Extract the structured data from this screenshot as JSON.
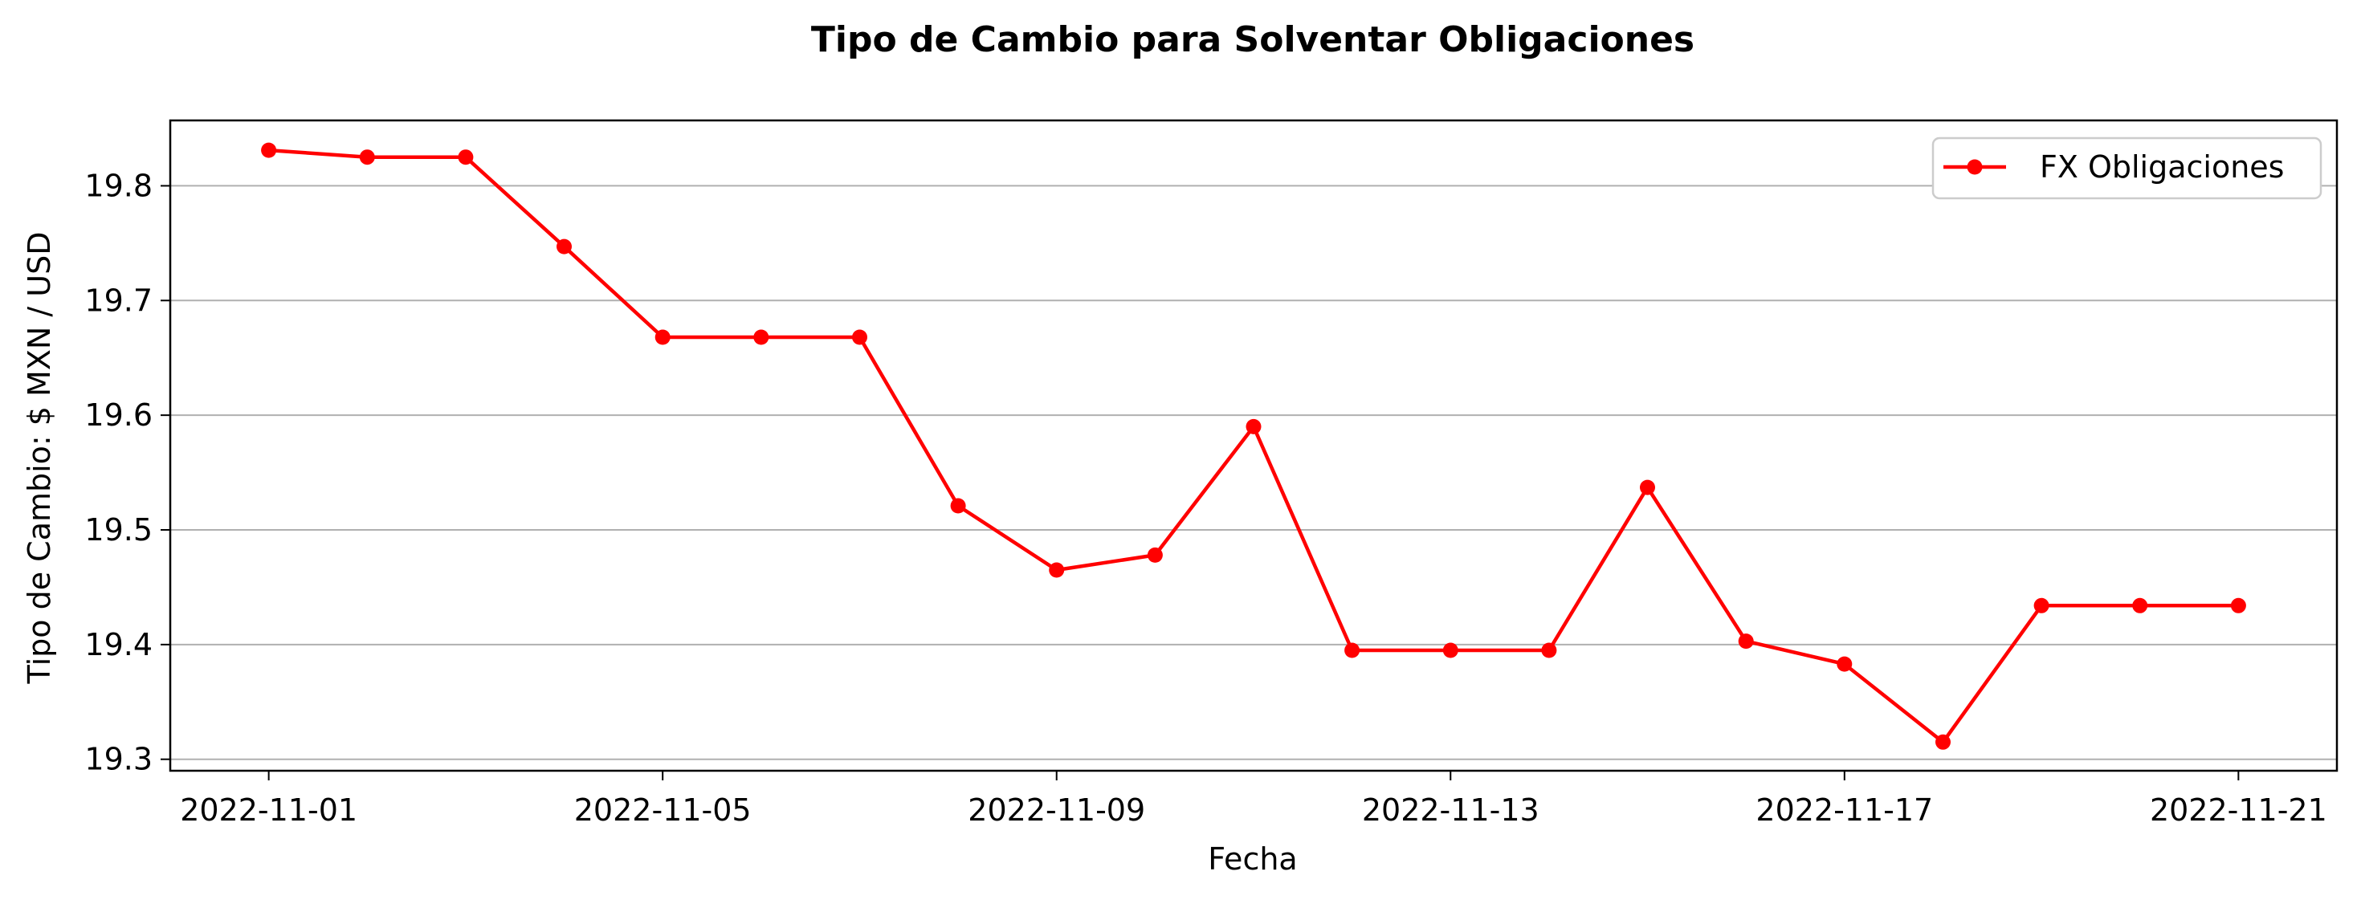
{
  "chart_data": {
    "type": "line",
    "title": "Tipo de Cambio para Solventar Obligaciones",
    "xlabel": "Fecha",
    "ylabel": "Tipo de Cambio: $ MXN / USD",
    "x": [
      "2022-11-01",
      "2022-11-02",
      "2022-11-03",
      "2022-11-04",
      "2022-11-05",
      "2022-11-06",
      "2022-11-07",
      "2022-11-08",
      "2022-11-09",
      "2022-11-10",
      "2022-11-11",
      "2022-11-12",
      "2022-11-13",
      "2022-11-14",
      "2022-11-15",
      "2022-11-16",
      "2022-11-17",
      "2022-11-18",
      "2022-11-19",
      "2022-11-20",
      "2022-11-21"
    ],
    "series": [
      {
        "name": "FX Obligaciones",
        "color": "#ff0000",
        "marker": "circle",
        "values": [
          19.831,
          19.825,
          19.825,
          19.747,
          19.668,
          19.668,
          19.668,
          19.521,
          19.465,
          19.478,
          19.59,
          19.395,
          19.395,
          19.395,
          19.537,
          19.403,
          19.383,
          19.315,
          19.434,
          19.434,
          19.434
        ]
      }
    ],
    "xticks": [
      "2022-11-01",
      "2022-11-05",
      "2022-11-09",
      "2022-11-13",
      "2022-11-17",
      "2022-11-21"
    ],
    "yticks": [
      "19.3",
      "19.4",
      "19.5",
      "19.6",
      "19.7",
      "19.8"
    ],
    "ytick_values": [
      19.3,
      19.4,
      19.5,
      19.6,
      19.7,
      19.8
    ],
    "xlim": [
      "2022-10-31",
      "2022-11-22"
    ],
    "ylim": [
      19.29,
      19.857
    ],
    "grid": "horizontal",
    "legend_position": "top-right"
  }
}
